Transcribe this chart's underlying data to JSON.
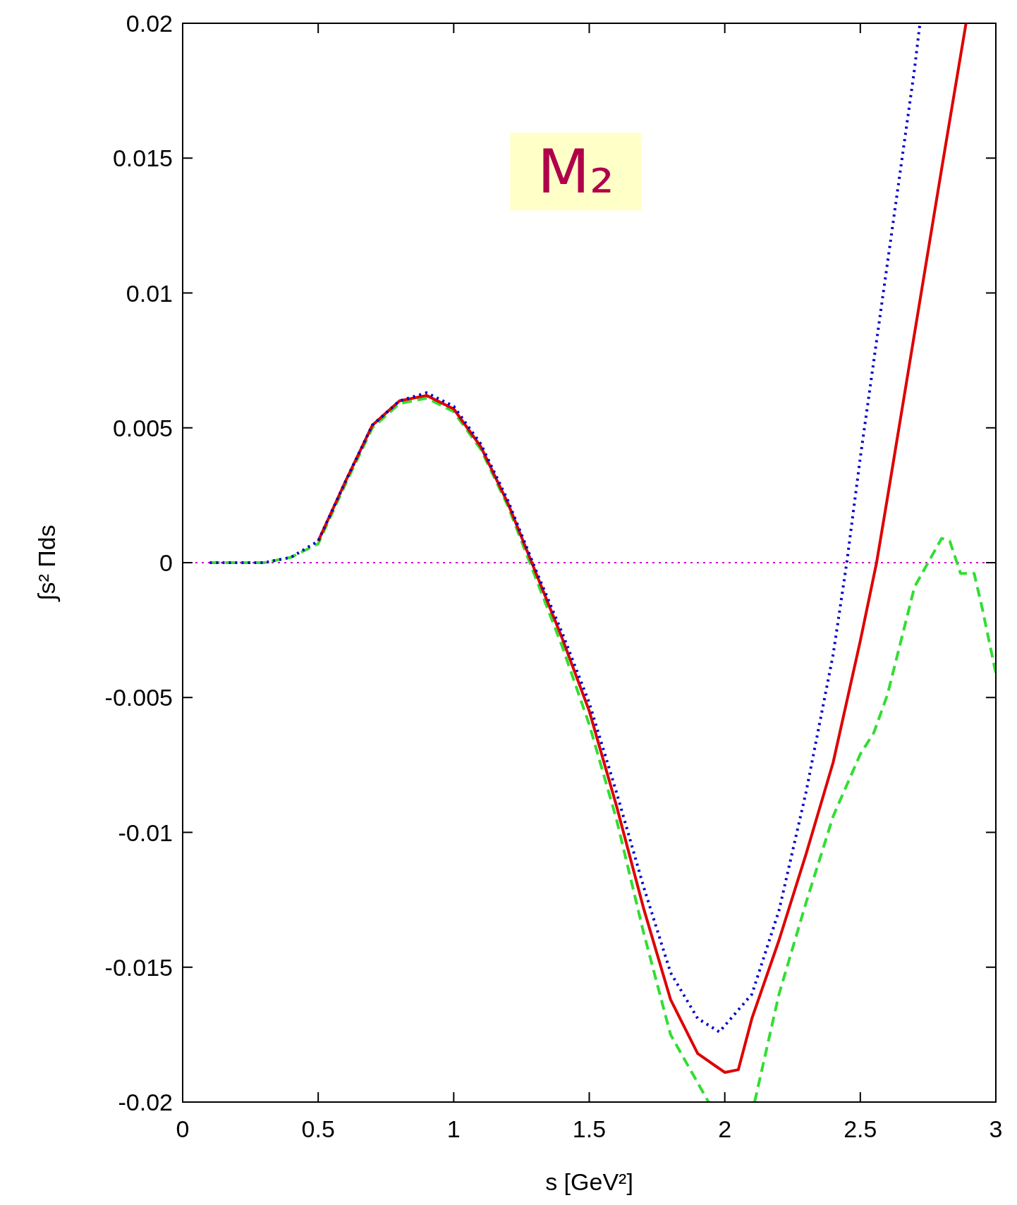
{
  "chart_data": {
    "type": "line",
    "xlabel": "s [GeV²]",
    "ylabel": "∫s² Πds",
    "annotations": [
      "M₂"
    ],
    "xlim": [
      0,
      3
    ],
    "ylim": [
      -0.02,
      0.02
    ],
    "xticks": [
      0,
      0.5,
      1,
      1.5,
      2,
      2.5,
      3
    ],
    "yticks": [
      -0.02,
      -0.015,
      -0.01,
      -0.005,
      0,
      0.005,
      0.01,
      0.015,
      0.02
    ],
    "grid": false,
    "ref_lines": [
      {
        "axis": "y",
        "value": 0,
        "color": "#cc00cc",
        "line_style": "dotted"
      }
    ],
    "series": [
      {
        "color": "#0000cc",
        "line_style": "dotted",
        "x": [
          0.1,
          0.3,
          0.4,
          0.5,
          0.6,
          0.7,
          0.8,
          0.9,
          1.0,
          1.1,
          1.2,
          1.3,
          1.4,
          1.5,
          1.6,
          1.7,
          1.8,
          1.9,
          1.98,
          2.1,
          2.2,
          2.3,
          2.4,
          2.45,
          2.5,
          2.6,
          2.7,
          2.72
        ],
        "values": [
          0,
          0,
          0.0002,
          0.0008,
          0.003,
          0.0051,
          0.006,
          0.0063,
          0.0058,
          0.0044,
          0.0023,
          -0.0002,
          -0.0026,
          -0.0052,
          -0.0085,
          -0.012,
          -0.0152,
          -0.0169,
          -0.0174,
          -0.016,
          -0.0129,
          -0.0085,
          -0.0034,
          0,
          0.0039,
          0.0111,
          0.0183,
          0.02
        ]
      },
      {
        "color": "#dd0000",
        "line_style": "solid",
        "x": [
          0.5,
          0.6,
          0.7,
          0.8,
          0.9,
          1.0,
          1.1,
          1.2,
          1.3,
          1.4,
          1.5,
          1.6,
          1.7,
          1.8,
          1.9,
          2.0,
          2.05,
          2.1,
          2.2,
          2.3,
          2.4,
          2.5,
          2.56,
          2.6,
          2.7,
          2.8,
          2.89
        ],
        "values": [
          0.0008,
          0.003,
          0.0051,
          0.006,
          0.0062,
          0.0057,
          0.0043,
          0.0022,
          -0.0003,
          -0.0028,
          -0.0055,
          -0.009,
          -0.0128,
          -0.0162,
          -0.0182,
          -0.0189,
          -0.0188,
          -0.0169,
          -0.014,
          -0.0108,
          -0.0074,
          -0.0029,
          0,
          0.0024,
          0.0085,
          0.0146,
          0.02
        ]
      },
      {
        "color": "#33dd33",
        "line_style": "dashed",
        "x": [
          0.1,
          0.3,
          0.4,
          0.5,
          0.6,
          0.7,
          0.8,
          0.9,
          1.0,
          1.1,
          1.2,
          1.3,
          1.4,
          1.5,
          1.6,
          1.7,
          1.8,
          1.94,
          2.0,
          2.11,
          2.2,
          2.3,
          2.4,
          2.5,
          2.55,
          2.6,
          2.7,
          2.75,
          2.8,
          2.83,
          2.87,
          2.92,
          2.95,
          3.0
        ],
        "values": [
          0,
          0,
          0.0002,
          0.0007,
          0.0029,
          0.005,
          0.0059,
          0.0061,
          0.0056,
          0.0042,
          0.0021,
          -0.0005,
          -0.0031,
          -0.006,
          -0.0095,
          -0.0137,
          -0.0175,
          -0.02,
          null,
          -0.02,
          -0.016,
          -0.0126,
          -0.0094,
          -0.0071,
          -0.0063,
          -0.0049,
          -0.0009,
          0,
          0.0009,
          0.0008,
          -0.0004,
          -0.0004,
          -0.0017,
          -0.0041
        ]
      }
    ]
  }
}
